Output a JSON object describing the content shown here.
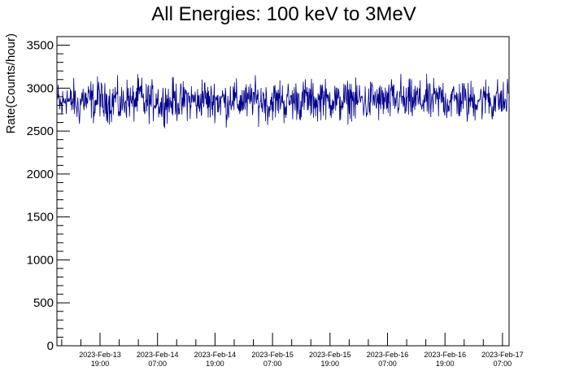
{
  "chart_data": {
    "type": "line",
    "title": "All Energies:  100 keV to 3MeV",
    "xlabel": "",
    "ylabel": "Rate(Counts/hour)",
    "ylim": [
      0,
      3600
    ],
    "y_ticks": [
      0,
      500,
      1000,
      1500,
      2000,
      2500,
      3000,
      3500
    ],
    "x_tick_labels": [
      {
        "date": "2023-Feb-13",
        "time": "19:00"
      },
      {
        "date": "2023-Feb-14",
        "time": "07:00"
      },
      {
        "date": "2023-Feb-14",
        "time": "19:00"
      },
      {
        "date": "2023-Feb-15",
        "time": "07:00"
      },
      {
        "date": "2023-Feb-15",
        "time": "19:00"
      },
      {
        "date": "2023-Feb-16",
        "time": "07:00"
      },
      {
        "date": "2023-Feb-16",
        "time": "19:00"
      },
      {
        "date": "2023-Feb-17",
        "time": "07:00"
      }
    ],
    "xlim": [
      "2023-Feb-13 12:20",
      "2023-Feb-17 08:40"
    ],
    "series_color": "#00008b",
    "series": [
      {
        "values": [
          2850,
          2780,
          2920,
          2810,
          2870,
          2750,
          2900,
          2830,
          2880,
          2800,
          2940,
          2790,
          2860,
          2820,
          2910,
          2770,
          2850,
          2890,
          2810,
          2870,
          2930,
          2800,
          2860,
          2840,
          2900,
          2780,
          2870,
          2820,
          2880,
          2850,
          2810,
          2900,
          2840,
          2870,
          2790,
          2930,
          2860,
          2820,
          2890,
          2840,
          2880,
          2800,
          2920,
          2850,
          2830,
          2870,
          2810,
          2900,
          2860,
          2840,
          2890,
          2780,
          2870,
          2830,
          2910,
          2800,
          2860,
          2850,
          2880,
          2820,
          2900,
          2840,
          2870,
          2810,
          2950,
          2830,
          2860,
          2890,
          2800,
          2870,
          2840,
          2910,
          2820,
          2880,
          2850,
          2790,
          2900,
          2860,
          2830,
          2870,
          2810,
          2890,
          2850,
          2920,
          2800,
          2860,
          2840,
          2880,
          2830,
          2900,
          2810,
          2870,
          2850,
          2930,
          2820,
          2860,
          2880,
          2840,
          2900,
          2810,
          2870,
          2850,
          2890,
          2830,
          2940,
          2800,
          2880,
          2860,
          2820,
          2910
        ]
      }
    ]
  }
}
